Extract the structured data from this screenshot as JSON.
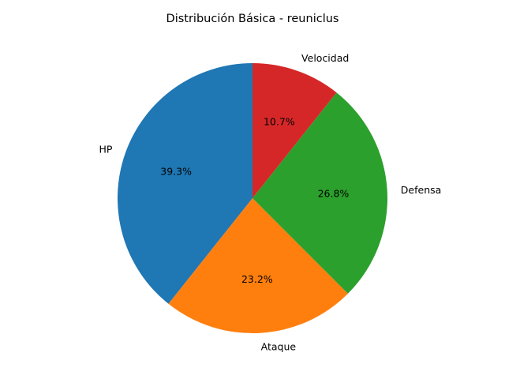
{
  "chart_data": {
    "type": "pie",
    "title": "Distribución Básica - reuniclus",
    "categories": [
      "HP",
      "Ataque",
      "Defensa",
      "Velocidad"
    ],
    "values": [
      39.3,
      23.2,
      26.8,
      10.7
    ],
    "value_labels": [
      "39.3%",
      "23.2%",
      "26.8%",
      "10.7%"
    ],
    "colors": [
      "#1f77b4",
      "#ff7f0e",
      "#2ca02c",
      "#d62728"
    ],
    "start_angle_deg": 90,
    "direction": "counterclockwise",
    "legend": "none"
  }
}
